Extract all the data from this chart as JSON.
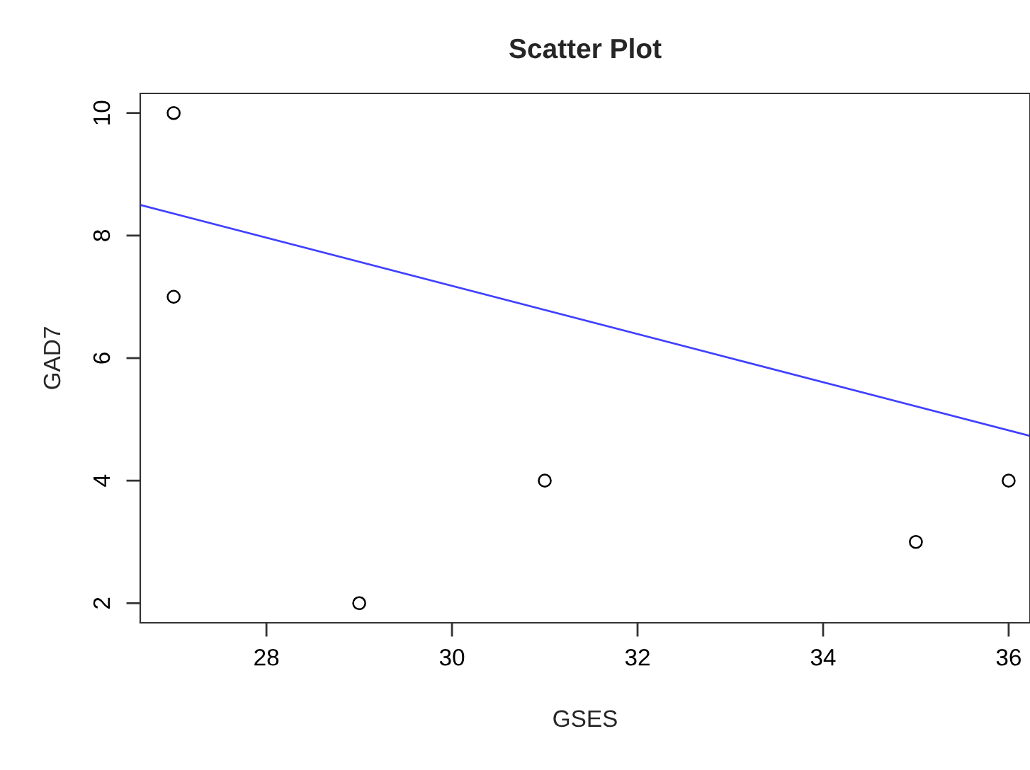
{
  "chart_data": {
    "type": "scatter",
    "title": "Scatter Plot",
    "xlabel": "GSES",
    "ylabel": "GAD7",
    "x": [
      27,
      27,
      29,
      31,
      35,
      36
    ],
    "series": [
      {
        "color": "#000000",
        "values": [
          10,
          7,
          2,
          4,
          3,
          4
        ],
        "marker": "circle"
      },
      {
        "type": "line",
        "color": "#4040ff",
        "x": [
          26.64,
          36.23
        ],
        "values": [
          8.5,
          4.73
        ],
        "marker": "none"
      }
    ],
    "xlim": [
      26.64,
      36.23
    ],
    "xticks": [
      28,
      30,
      32,
      34,
      36
    ],
    "ylim": [
      1.68,
      10.32
    ],
    "yticks": [
      2,
      4,
      6,
      8,
      10
    ],
    "grid": false,
    "legend": false
  }
}
